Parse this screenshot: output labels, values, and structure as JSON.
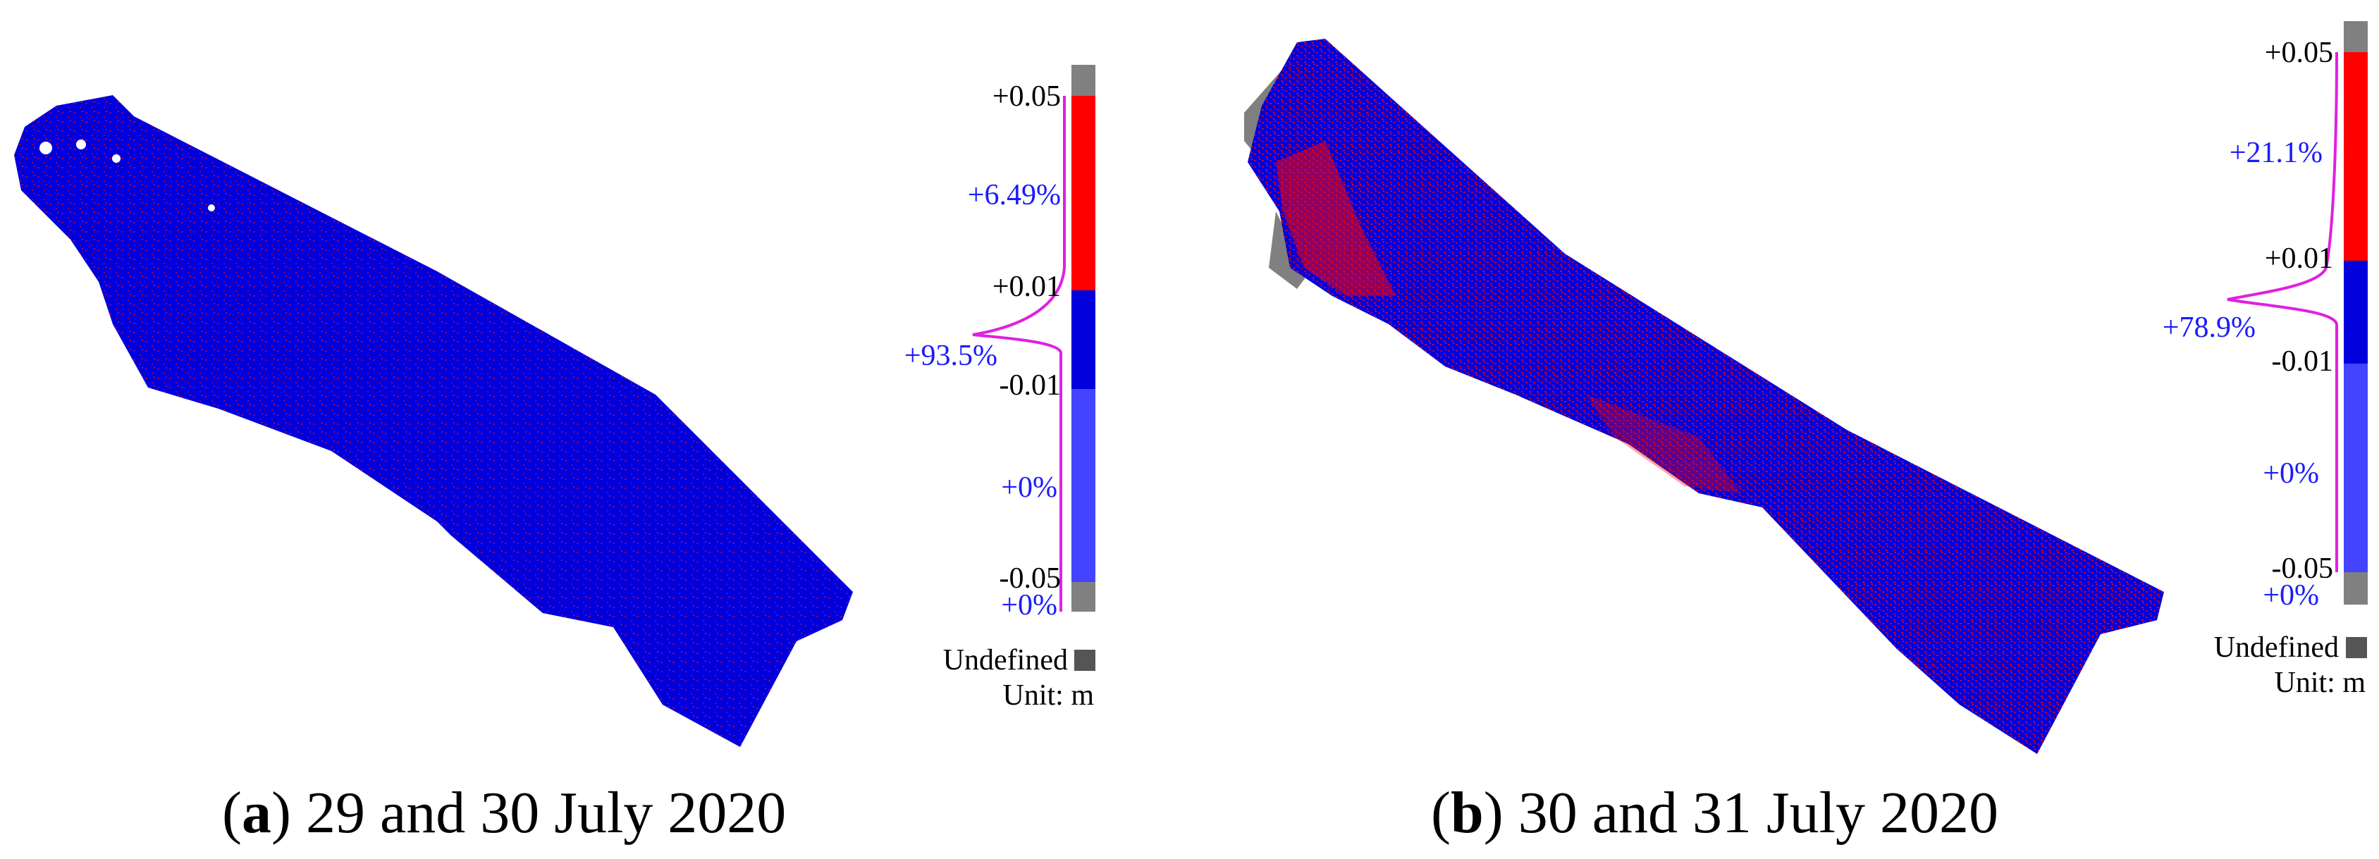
{
  "panels": [
    {
      "id": "a",
      "caption_letter": "a",
      "caption_text": "29 and 30 July 2020",
      "scale_ticks": [
        "+0.05",
        "+0.01",
        "-0.01",
        "-0.05"
      ],
      "percentages": [
        "+6.49%",
        "+93.5%",
        "+0%",
        "+0%"
      ],
      "undefined_label": "Undefined",
      "unit_label": "Unit:  m"
    },
    {
      "id": "b",
      "caption_letter": "b",
      "caption_text": "30 and 31 July 2020",
      "scale_ticks": [
        "+0.05",
        "+0.01",
        "-0.01",
        "-0.05"
      ],
      "percentages": [
        "+21.1%",
        "+78.9%",
        "+0%",
        "+0%"
      ],
      "undefined_label": "Undefined",
      "unit_label": "Unit:  m"
    }
  ],
  "colors": {
    "positive": "#ff0000",
    "near_zero": "#0000dd",
    "negative": "#4444ff",
    "undefined": "#808080",
    "histogram": "#e020e0",
    "percent_text": "#1a1aff"
  }
}
